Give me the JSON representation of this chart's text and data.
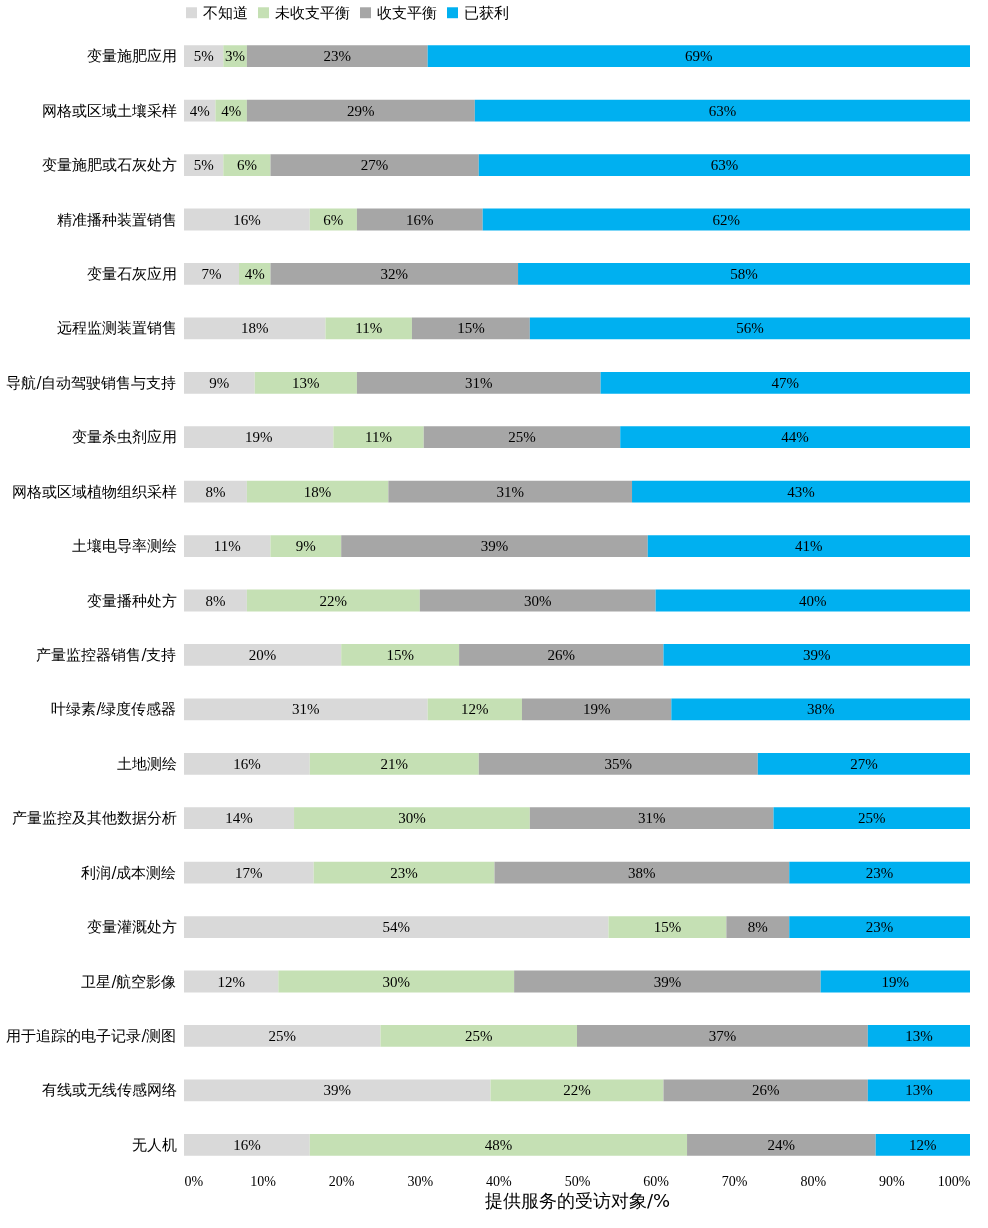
{
  "chart_data": {
    "type": "bar",
    "orientation": "horizontal",
    "stacked": true,
    "xlabel": "提供服务的受访对象/%",
    "legend": "top",
    "categories": [
      "变量施肥应用",
      "网格或区域土壤采样",
      "变量施肥或石灰处方",
      "精准播种装置销售",
      "变量石灰应用",
      "远程监测装置销售",
      "导航/自动驾驶销售与支持",
      "变量杀虫剂应用",
      "网格或区域植物组织采样",
      "土壤电导率测绘",
      "变量播种处方",
      "产量监控器销售/支持",
      "叶绿素/绿度传感器",
      "土地测绘",
      "产量监控及其他数据分析",
      "利润/成本测绘",
      "变量灌溉处方",
      "卫星/航空影像",
      "用于追踪的电子记录/测图",
      "有线或无线传感网络",
      "无人机"
    ],
    "series": [
      {
        "name": "不知道",
        "color": "#d9d9d9",
        "values": [
          5,
          4,
          5,
          16,
          7,
          18,
          9,
          19,
          8,
          11,
          8,
          20,
          31,
          16,
          14,
          16.5,
          54,
          12,
          25,
          39,
          16
        ],
        "value_labels": [
          "5%",
          "4%",
          "5%",
          "16%",
          "7%",
          "18%",
          "9%",
          "19%",
          "8%",
          "11%",
          "8%",
          "20%",
          "31%",
          "16%",
          "14%",
          "17%",
          "54%",
          "12%",
          "25%",
          "39%",
          "16%"
        ]
      },
      {
        "name": "未收支平衡",
        "color": "#c5e0b4",
        "values": [
          3,
          4,
          6,
          6,
          4,
          11,
          13,
          11.5,
          18,
          9,
          22,
          15,
          12,
          21.5,
          30,
          23,
          15,
          30,
          25,
          22,
          48
        ],
        "value_labels": [
          "3%",
          "4%",
          "6%",
          "6%",
          "4%",
          "11%",
          "13%",
          "11%",
          "18%",
          "9%",
          "22%",
          "15%",
          "12%",
          "21%",
          "30%",
          "23%",
          "15%",
          "30%",
          "25%",
          "22%",
          "48%"
        ]
      },
      {
        "name": "收支平衡",
        "color": "#a6a6a6",
        "values": [
          23,
          29,
          26.5,
          16,
          31.5,
          15,
          31,
          25,
          31,
          39,
          30,
          26,
          19,
          35.5,
          31,
          37.5,
          8,
          39,
          37,
          26,
          24
        ],
        "value_labels": [
          "23%",
          "29%",
          "27%",
          "16%",
          "32%",
          "15%",
          "31%",
          "25%",
          "31%",
          "39%",
          "30%",
          "26%",
          "19%",
          "35%",
          "31%",
          "38%",
          "8%",
          "39%",
          "37%",
          "26%",
          "24%"
        ]
      },
      {
        "name": "已获利",
        "color": "#00b0f0",
        "values": [
          69,
          63,
          62.5,
          62,
          57.5,
          56,
          47,
          44.5,
          43,
          41,
          40,
          39,
          38,
          27,
          25,
          23,
          23,
          19,
          13,
          13,
          12
        ],
        "value_labels": [
          "69%",
          "63%",
          "63%",
          "62%",
          "58%",
          "56%",
          "47%",
          "44%",
          "43%",
          "41%",
          "40%",
          "39%",
          "38%",
          "27%",
          "25%",
          "23%",
          "23%",
          "19%",
          "13%",
          "13%",
          "12%"
        ]
      }
    ],
    "xlim": [
      0,
      100
    ],
    "xticks": [
      {
        "value": 0,
        "label": "0%"
      },
      {
        "value": 10,
        "label": "10%"
      },
      {
        "value": 20,
        "label": "20%"
      },
      {
        "value": 30,
        "label": "30%"
      },
      {
        "value": 40,
        "label": "40%"
      },
      {
        "value": 50,
        "label": "50%"
      },
      {
        "value": 60,
        "label": "60%"
      },
      {
        "value": 70,
        "label": "70%"
      },
      {
        "value": 80,
        "label": "80%"
      },
      {
        "value": 90,
        "label": "90%"
      },
      {
        "value": 100,
        "label": "100%"
      }
    ]
  }
}
